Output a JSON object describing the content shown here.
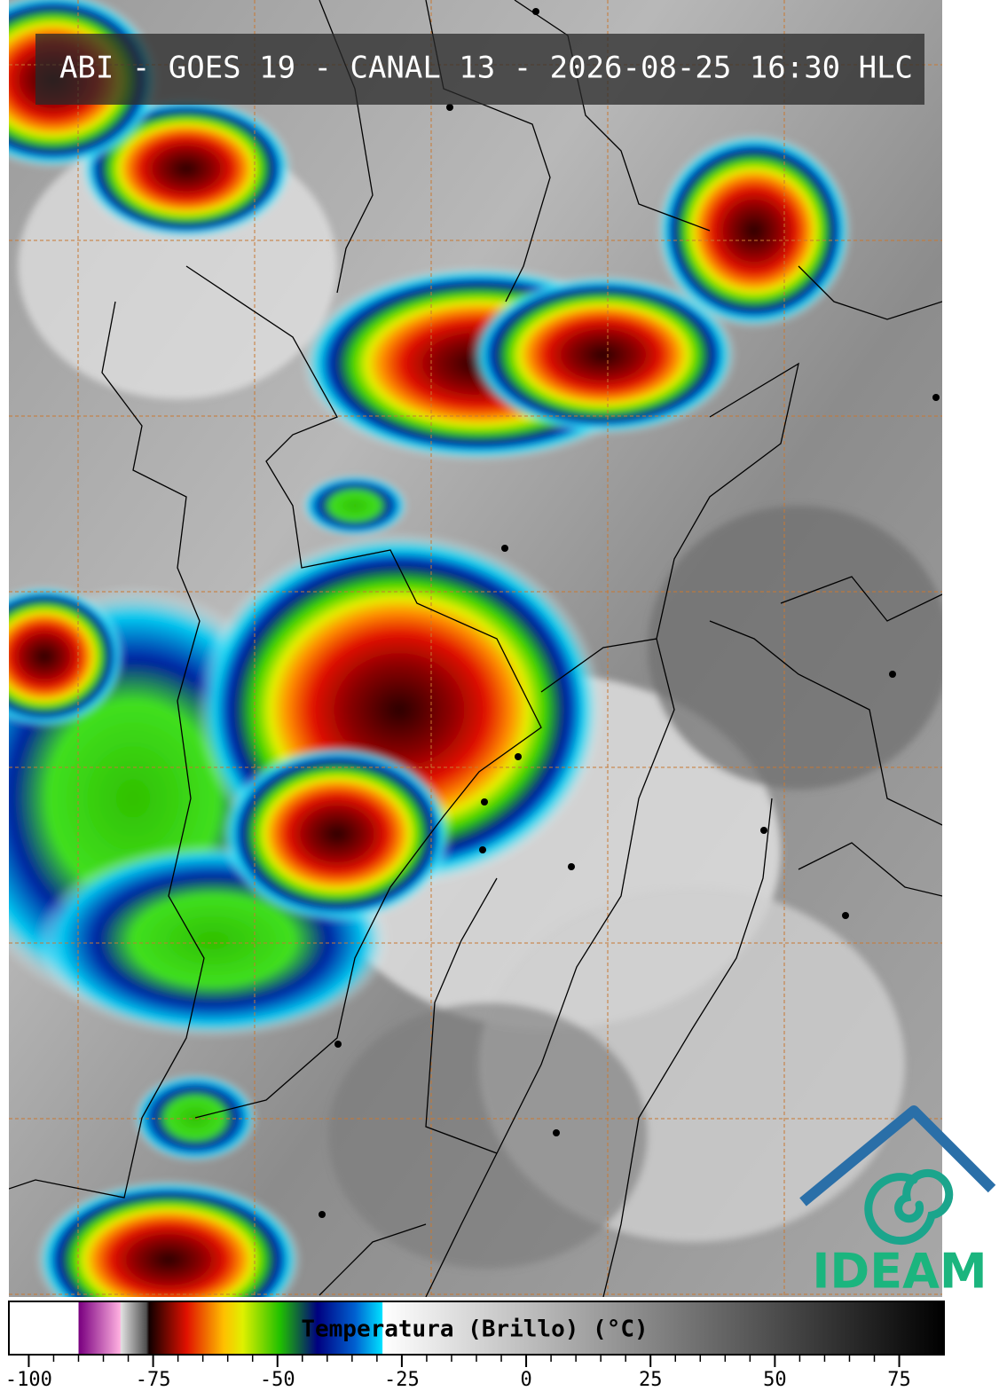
{
  "title": "ABI - GOES 19 - CANAL 13 - 2026-08-25 16:30 HLC",
  "colorbar": {
    "label": "Temperatura (Brillo) (°C)",
    "lim": [
      -104,
      84
    ],
    "ticks": [
      -100,
      -75,
      -50,
      -25,
      0,
      25,
      50,
      75
    ]
  },
  "logo": {
    "text": "IDEAM"
  }
}
